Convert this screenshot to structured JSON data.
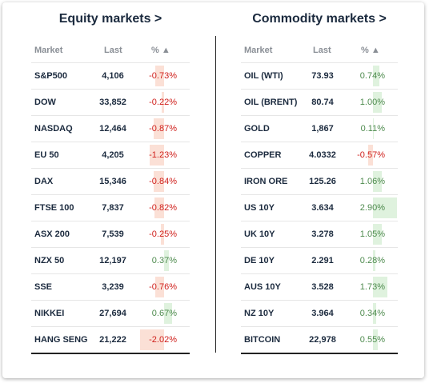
{
  "equity": {
    "title": "Equity markets >",
    "columns": {
      "market": "Market",
      "last": "Last",
      "pct": "% ▲"
    },
    "rows": [
      {
        "market": "S&P500",
        "last": "4,106",
        "pct": "-0.73%",
        "change": -0.73
      },
      {
        "market": "DOW",
        "last": "33,852",
        "pct": "-0.22%",
        "change": -0.22
      },
      {
        "market": "NASDAQ",
        "last": "12,464",
        "pct": "-0.87%",
        "change": -0.87
      },
      {
        "market": "EU 50",
        "last": "4,205",
        "pct": "-1.23%",
        "change": -1.23
      },
      {
        "market": "DAX",
        "last": "15,346",
        "pct": "-0.84%",
        "change": -0.84
      },
      {
        "market": "FTSE 100",
        "last": "7,837",
        "pct": "-0.82%",
        "change": -0.82
      },
      {
        "market": "ASX 200",
        "last": "7,539",
        "pct": "-0.25%",
        "change": -0.25
      },
      {
        "market": "NZX 50",
        "last": "12,197",
        "pct": "0.37%",
        "change": 0.37
      },
      {
        "market": "SSE",
        "last": "3,239",
        "pct": "-0.76%",
        "change": -0.76
      },
      {
        "market": "NIKKEI",
        "last": "27,694",
        "pct": "0.67%",
        "change": 0.67
      },
      {
        "market": "HANG SENG",
        "last": "21,222",
        "pct": "-2.02%",
        "change": -2.02
      }
    ]
  },
  "commodity": {
    "title": "Commodity markets >",
    "columns": {
      "market": "Market",
      "last": "Last",
      "pct": "% ▲"
    },
    "rows": [
      {
        "market": "OIL (WTI)",
        "last": "73.93",
        "pct": "0.74%",
        "change": 0.74
      },
      {
        "market": "OIL (BRENT)",
        "last": "80.74",
        "pct": "1.00%",
        "change": 1.0
      },
      {
        "market": "GOLD",
        "last": "1,867",
        "pct": "0.11%",
        "change": 0.11
      },
      {
        "market": "COPPER",
        "last": "4.0332",
        "pct": "-0.57%",
        "change": -0.57
      },
      {
        "market": "IRON ORE",
        "last": "125.26",
        "pct": "1.06%",
        "change": 1.06
      },
      {
        "market": "US 10Y",
        "last": "3.634",
        "pct": "2.90%",
        "change": 2.9
      },
      {
        "market": "UK 10Y",
        "last": "3.278",
        "pct": "1.05%",
        "change": 1.05
      },
      {
        "market": "DE 10Y",
        "last": "2.291",
        "pct": "0.28%",
        "change": 0.28
      },
      {
        "market": "AUS 10Y",
        "last": "3.528",
        "pct": "1.73%",
        "change": 1.73
      },
      {
        "market": "NZ 10Y",
        "last": "3.964",
        "pct": "0.34%",
        "change": 0.34
      },
      {
        "market": "BITCOIN",
        "last": "22,978",
        "pct": "0.55%",
        "change": 0.55
      }
    ]
  },
  "colors": {
    "negative": "#d0201c",
    "positive": "#4d8a4d",
    "negative_bar": "#fbe0d6",
    "positive_bar": "#dff2de"
  }
}
